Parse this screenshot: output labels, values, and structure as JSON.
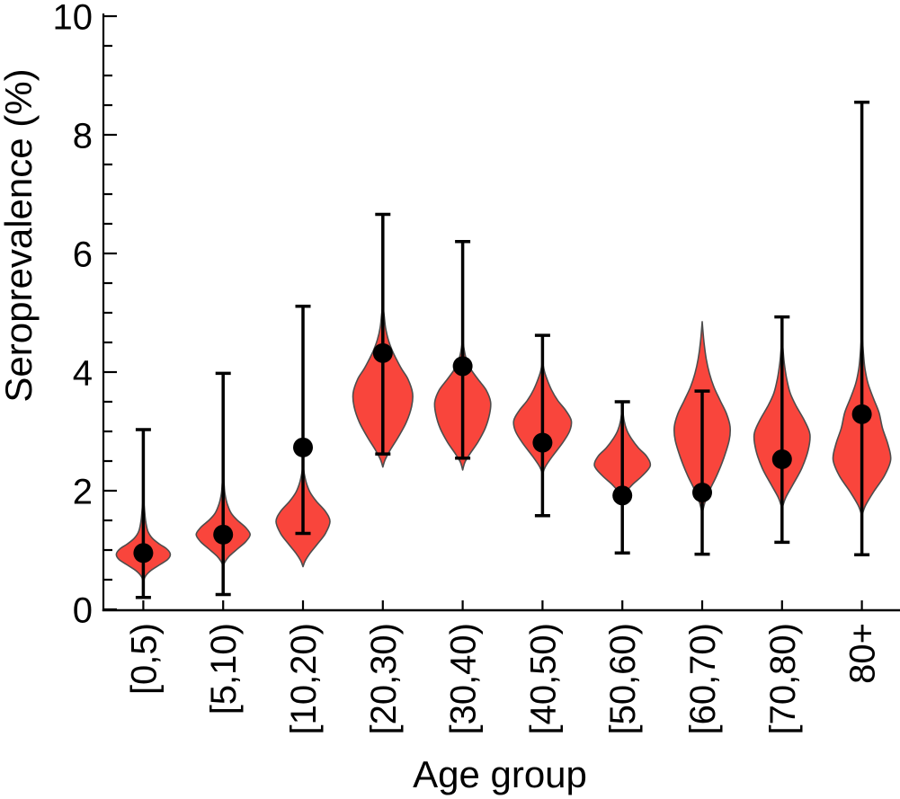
{
  "chart_data": {
    "type": "violin",
    "title": "",
    "xlabel": "Age group",
    "ylabel": "Seroprevalence (%)",
    "ylim": [
      0,
      10
    ],
    "y_major_ticks": [
      0,
      2,
      4,
      6,
      8,
      10
    ],
    "y_minor_tick_step": 0.5,
    "grid": false,
    "legend": "none",
    "categories": [
      "[0,5)",
      "[5,10)",
      "[10,20)",
      "[20,30)",
      "[30,40)",
      "[40,50)",
      "[50,60)",
      "[60,70)",
      "[70,80)",
      "80+"
    ],
    "series_description": "Posterior seroprevalence distributions (red violins) with point estimates (black dots) and credible intervals (black error bars) by age group",
    "groups": [
      {
        "label": "[0,5)",
        "estimate": 0.95,
        "ci_low": 0.2,
        "ci_high": 3.03,
        "violin_profile": [
          [
            0.45,
            0
          ],
          [
            0.55,
            2
          ],
          [
            0.65,
            8
          ],
          [
            0.75,
            18
          ],
          [
            0.84,
            27
          ],
          [
            0.93,
            30
          ],
          [
            1.02,
            26
          ],
          [
            1.1,
            18
          ],
          [
            1.2,
            10
          ],
          [
            1.32,
            5
          ],
          [
            1.5,
            2.5
          ],
          [
            1.7,
            1.2
          ],
          [
            1.88,
            0
          ]
        ]
      },
      {
        "label": "[5,10)",
        "estimate": 1.26,
        "ci_low": 0.25,
        "ci_high": 3.98,
        "violin_profile": [
          [
            0.72,
            0
          ],
          [
            0.8,
            2
          ],
          [
            0.9,
            7
          ],
          [
            1.02,
            16
          ],
          [
            1.14,
            25
          ],
          [
            1.26,
            30
          ],
          [
            1.38,
            25
          ],
          [
            1.5,
            16
          ],
          [
            1.62,
            9
          ],
          [
            1.78,
            4.5
          ],
          [
            1.95,
            2
          ],
          [
            2.12,
            1
          ],
          [
            2.28,
            0
          ]
        ]
      },
      {
        "label": "[10,20)",
        "estimate": 2.73,
        "ci_low": 1.28,
        "ci_high": 5.11,
        "violin_profile": [
          [
            0.72,
            0
          ],
          [
            0.82,
            2.5
          ],
          [
            0.95,
            8
          ],
          [
            1.1,
            16
          ],
          [
            1.28,
            25
          ],
          [
            1.48,
            30
          ],
          [
            1.65,
            25
          ],
          [
            1.82,
            15
          ],
          [
            1.97,
            8
          ],
          [
            2.12,
            4
          ],
          [
            2.28,
            1.5
          ],
          [
            2.45,
            0
          ]
        ]
      },
      {
        "label": "[20,30)",
        "estimate": 4.32,
        "ci_low": 2.62,
        "ci_high": 6.66,
        "violin_profile": [
          [
            2.4,
            0
          ],
          [
            2.52,
            2.5
          ],
          [
            2.68,
            8
          ],
          [
            2.9,
            17
          ],
          [
            3.15,
            26
          ],
          [
            3.42,
            32
          ],
          [
            3.65,
            33
          ],
          [
            3.88,
            28
          ],
          [
            4.05,
            21
          ],
          [
            4.22,
            15
          ],
          [
            4.38,
            10
          ],
          [
            4.55,
            6
          ],
          [
            4.75,
            3
          ],
          [
            4.95,
            1.5
          ],
          [
            5.15,
            0
          ]
        ]
      },
      {
        "label": "[30,40)",
        "estimate": 4.1,
        "ci_low": 2.55,
        "ci_high": 6.2,
        "violin_profile": [
          [
            2.35,
            0
          ],
          [
            2.48,
            2.5
          ],
          [
            2.62,
            8
          ],
          [
            2.82,
            17
          ],
          [
            3.05,
            25
          ],
          [
            3.3,
            30
          ],
          [
            3.5,
            31
          ],
          [
            3.7,
            26
          ],
          [
            3.88,
            17
          ],
          [
            4.05,
            9
          ],
          [
            4.2,
            4.5
          ],
          [
            4.35,
            2
          ],
          [
            4.55,
            0
          ]
        ]
      },
      {
        "label": "[40,50)",
        "estimate": 2.81,
        "ci_low": 1.58,
        "ci_high": 4.62,
        "violin_profile": [
          [
            2.28,
            0
          ],
          [
            2.4,
            3
          ],
          [
            2.58,
            11
          ],
          [
            2.8,
            22
          ],
          [
            3.0,
            30
          ],
          [
            3.18,
            32
          ],
          [
            3.35,
            26
          ],
          [
            3.52,
            17
          ],
          [
            3.7,
            10
          ],
          [
            3.88,
            5
          ],
          [
            4.02,
            2
          ],
          [
            4.18,
            0
          ]
        ]
      },
      {
        "label": "[50,60)",
        "estimate": 1.92,
        "ci_low": 0.95,
        "ci_high": 3.5,
        "violin_profile": [
          [
            1.82,
            0
          ],
          [
            1.95,
            3
          ],
          [
            2.1,
            11
          ],
          [
            2.25,
            22
          ],
          [
            2.42,
            31
          ],
          [
            2.58,
            27
          ],
          [
            2.72,
            18
          ],
          [
            2.88,
            10
          ],
          [
            3.02,
            5
          ],
          [
            3.18,
            2
          ],
          [
            3.4,
            0
          ]
        ]
      },
      {
        "label": "[60,70)",
        "estimate": 1.97,
        "ci_low": 0.93,
        "ci_high": 3.68,
        "violin_profile": [
          [
            1.62,
            0
          ],
          [
            1.8,
            3
          ],
          [
            2.0,
            8
          ],
          [
            2.25,
            16
          ],
          [
            2.55,
            24
          ],
          [
            2.85,
            30
          ],
          [
            3.08,
            31
          ],
          [
            3.3,
            27
          ],
          [
            3.52,
            20
          ],
          [
            3.75,
            13
          ],
          [
            3.98,
            8
          ],
          [
            4.22,
            4.5
          ],
          [
            4.5,
            2
          ],
          [
            4.85,
            0
          ]
        ]
      },
      {
        "label": "[70,80)",
        "estimate": 2.53,
        "ci_low": 1.13,
        "ci_high": 4.93,
        "violin_profile": [
          [
            1.7,
            0
          ],
          [
            1.88,
            4
          ],
          [
            2.1,
            12
          ],
          [
            2.38,
            22
          ],
          [
            2.68,
            29
          ],
          [
            2.95,
            31
          ],
          [
            3.18,
            25
          ],
          [
            3.42,
            16
          ],
          [
            3.65,
            9
          ],
          [
            3.9,
            5
          ],
          [
            4.15,
            2.5
          ],
          [
            4.4,
            1
          ],
          [
            4.65,
            0
          ]
        ]
      },
      {
        "label": "80+",
        "estimate": 3.29,
        "ci_low": 0.92,
        "ci_high": 8.55,
        "violin_profile": [
          [
            1.58,
            0
          ],
          [
            1.75,
            4
          ],
          [
            1.98,
            13
          ],
          [
            2.25,
            25
          ],
          [
            2.52,
            32
          ],
          [
            2.78,
            29
          ],
          [
            3.05,
            23
          ],
          [
            3.32,
            19
          ],
          [
            3.55,
            13
          ],
          [
            3.8,
            7
          ],
          [
            4.05,
            3.5
          ],
          [
            4.3,
            1.8
          ],
          [
            4.7,
            0
          ]
        ]
      }
    ],
    "colors": {
      "violin_fill": "#F9453C",
      "violin_stroke": "#4D4D4D",
      "marker": "#000000",
      "error_bar": "#000000",
      "axis": "#000000",
      "background": "#FFFFFF"
    }
  }
}
